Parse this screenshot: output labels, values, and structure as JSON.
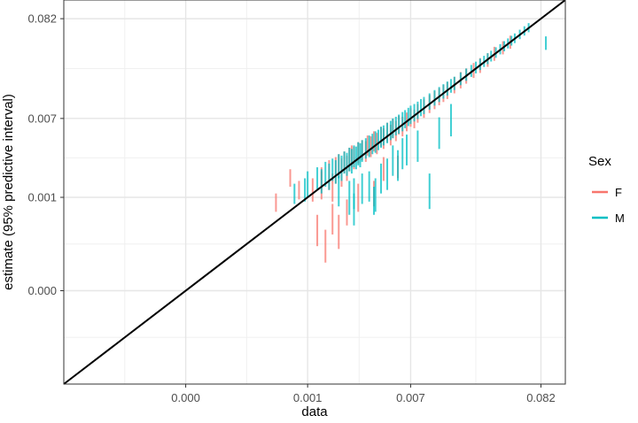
{
  "chart_data": {
    "type": "scatter",
    "subtype": "interval-scatter",
    "title": "",
    "xlabel": "data",
    "ylabel": "estimate (95% predictive interval)",
    "scale": "log10",
    "xlim": [
      1e-05,
      0.13
    ],
    "ylim": [
      1e-05,
      0.13
    ],
    "x_ticks": [
      {
        "value": 0.0001,
        "label": "0.000"
      },
      {
        "value": 0.001,
        "label": "0.001"
      },
      {
        "value": 0.007,
        "label": "0.007"
      },
      {
        "value": 0.082,
        "label": "0.082"
      }
    ],
    "y_ticks": [
      {
        "value": 0.0001,
        "label": "0.000"
      },
      {
        "value": 0.001,
        "label": "0.001"
      },
      {
        "value": 0.007,
        "label": "0.007"
      },
      {
        "value": 0.082,
        "label": "0.082"
      }
    ],
    "reference_line": "y = x",
    "grid": true,
    "legend": {
      "title": "Sex",
      "position": "right"
    },
    "series": [
      {
        "name": "F",
        "color": "#F8766D",
        "x": [
          0.00055,
          0.00072,
          0.00085,
          0.0011,
          0.0012,
          0.0013,
          0.0013,
          0.0015,
          0.0016,
          0.0017,
          0.0018,
          0.0019,
          0.002,
          0.0021,
          0.0022,
          0.0023,
          0.0024,
          0.0026,
          0.0028,
          0.003,
          0.0031,
          0.0033,
          0.0035,
          0.0037,
          0.004,
          0.0042,
          0.0045,
          0.0048,
          0.005,
          0.0053,
          0.0056,
          0.006,
          0.0065,
          0.007,
          0.0075,
          0.008,
          0.009,
          0.01,
          0.011,
          0.012,
          0.013,
          0.014,
          0.016,
          0.018,
          0.02,
          0.023,
          0.026,
          0.03,
          0.034,
          0.04,
          0.046,
          0.0016,
          0.0018,
          0.0021,
          0.0014,
          0.0026,
          0.0035,
          0.0042,
          0.0055
        ],
        "y": [
          0.0009,
          0.0016,
          0.0012,
          0.0012,
          0.00045,
          0.0014,
          0.0016,
          0.0018,
          0.0013,
          0.002,
          0.0022,
          0.0019,
          0.0024,
          0.0021,
          0.0026,
          0.0028,
          0.0027,
          0.003,
          0.0032,
          0.0031,
          0.0036,
          0.0035,
          0.004,
          0.0038,
          0.0045,
          0.0043,
          0.005,
          0.0047,
          0.0055,
          0.0052,
          0.006,
          0.0058,
          0.0065,
          0.0072,
          0.007,
          0.008,
          0.009,
          0.01,
          0.011,
          0.012,
          0.013,
          0.014,
          0.016,
          0.018,
          0.02,
          0.023,
          0.026,
          0.03,
          0.035,
          0.04,
          0.046,
          0.0006,
          0.00045,
          0.0007,
          0.0003,
          0.001,
          0.0011,
          0.002,
          0.0021
        ],
        "lo": [
          0.0007,
          0.0013,
          0.00095,
          0.0009,
          0.0003,
          0.00095,
          0.0012,
          0.0012,
          0.0009,
          0.0014,
          0.0016,
          0.0013,
          0.0018,
          0.0015,
          0.0019,
          0.0021,
          0.002,
          0.0023,
          0.0025,
          0.0024,
          0.0028,
          0.0027,
          0.0031,
          0.0029,
          0.0035,
          0.0033,
          0.0039,
          0.0036,
          0.0043,
          0.004,
          0.0047,
          0.0045,
          0.0051,
          0.0057,
          0.0055,
          0.0063,
          0.0071,
          0.008,
          0.0088,
          0.0097,
          0.0105,
          0.0113,
          0.013,
          0.0147,
          0.0165,
          0.019,
          0.0215,
          0.025,
          0.029,
          0.034,
          0.039,
          0.0004,
          0.00028,
          0.0005,
          0.0002,
          0.0007,
          0.0008,
          0.0015,
          0.0016
        ],
        "hi": [
          0.0011,
          0.002,
          0.0015,
          0.0016,
          0.00065,
          0.0019,
          0.0021,
          0.0025,
          0.0018,
          0.0027,
          0.0029,
          0.0026,
          0.0031,
          0.0028,
          0.0034,
          0.0036,
          0.0035,
          0.0039,
          0.0041,
          0.004,
          0.0046,
          0.0045,
          0.0051,
          0.0049,
          0.0057,
          0.0055,
          0.0063,
          0.006,
          0.0069,
          0.0066,
          0.0075,
          0.0073,
          0.0081,
          0.009,
          0.0087,
          0.01,
          0.0112,
          0.0125,
          0.0137,
          0.0148,
          0.016,
          0.0172,
          0.0195,
          0.022,
          0.024,
          0.0275,
          0.031,
          0.035,
          0.041,
          0.047,
          0.054,
          0.00085,
          0.00065,
          0.00095,
          0.00045,
          0.0014,
          0.0015,
          0.0027,
          0.0028
        ]
      },
      {
        "name": "M",
        "color": "#00BFC4",
        "x": [
          0.00078,
          0.00095,
          0.001,
          0.0012,
          0.0013,
          0.0014,
          0.0015,
          0.0016,
          0.0017,
          0.0018,
          0.0019,
          0.002,
          0.0021,
          0.0022,
          0.0023,
          0.0024,
          0.0025,
          0.0026,
          0.0027,
          0.0028,
          0.003,
          0.0032,
          0.0034,
          0.0036,
          0.0038,
          0.004,
          0.0042,
          0.0045,
          0.0048,
          0.005,
          0.0053,
          0.0056,
          0.006,
          0.0063,
          0.0067,
          0.007,
          0.0075,
          0.008,
          0.0085,
          0.009,
          0.01,
          0.011,
          0.012,
          0.013,
          0.014,
          0.015,
          0.016,
          0.018,
          0.02,
          0.022,
          0.024,
          0.026,
          0.028,
          0.03,
          0.032,
          0.035,
          0.038,
          0.041,
          0.044,
          0.047,
          0.05,
          0.055,
          0.06,
          0.065,
          0.09,
          0.0018,
          0.0022,
          0.0024,
          0.0028,
          0.0032,
          0.0036,
          0.004,
          0.0045,
          0.005,
          0.0055,
          0.006,
          0.0065,
          0.008,
          0.01,
          0.012,
          0.015,
          0.0024,
          0.0035
        ],
        "y": [
          0.0011,
          0.0012,
          0.0014,
          0.0016,
          0.0015,
          0.0018,
          0.0017,
          0.002,
          0.0019,
          0.0022,
          0.0021,
          0.0024,
          0.0023,
          0.0026,
          0.0025,
          0.0028,
          0.0027,
          0.003,
          0.0029,
          0.0032,
          0.0034,
          0.0036,
          0.0038,
          0.004,
          0.0042,
          0.0045,
          0.0047,
          0.005,
          0.0053,
          0.0056,
          0.0059,
          0.0062,
          0.0066,
          0.007,
          0.0074,
          0.0078,
          0.0082,
          0.0087,
          0.0093,
          0.0098,
          0.0108,
          0.0118,
          0.0128,
          0.0138,
          0.0148,
          0.0158,
          0.0168,
          0.0188,
          0.0208,
          0.0228,
          0.0248,
          0.0268,
          0.0288,
          0.0308,
          0.0328,
          0.0358,
          0.0388,
          0.0418,
          0.0448,
          0.0478,
          0.0508,
          0.0558,
          0.0608,
          0.0658,
          0.045,
          0.0012,
          0.001,
          0.0011,
          0.00125,
          0.0013,
          0.0011,
          0.0016,
          0.0018,
          0.0025,
          0.0022,
          0.003,
          0.0033,
          0.0036,
          0.0012,
          0.005,
          0.007,
          0.00075,
          0.00095
        ],
        "lo": [
          0.00085,
          0.0009,
          0.001,
          0.0012,
          0.0011,
          0.0013,
          0.0012,
          0.0015,
          0.0014,
          0.0016,
          0.0015,
          0.0018,
          0.0017,
          0.0019,
          0.0018,
          0.0021,
          0.002,
          0.0022,
          0.0021,
          0.0024,
          0.0026,
          0.0027,
          0.0029,
          0.003,
          0.0032,
          0.0034,
          0.0036,
          0.0038,
          0.0041,
          0.0043,
          0.0046,
          0.0048,
          0.0051,
          0.0055,
          0.0058,
          0.0061,
          0.0065,
          0.0069,
          0.0074,
          0.0078,
          0.0087,
          0.0096,
          0.0105,
          0.0114,
          0.0123,
          0.0132,
          0.0141,
          0.0159,
          0.0177,
          0.0195,
          0.0213,
          0.0231,
          0.0249,
          0.0267,
          0.0285,
          0.0312,
          0.034,
          0.0367,
          0.0394,
          0.0422,
          0.0449,
          0.0495,
          0.0541,
          0.0587,
          0.038,
          0.0008,
          0.00065,
          0.00075,
          0.00085,
          0.0009,
          0.0007,
          0.0011,
          0.0012,
          0.0017,
          0.0015,
          0.002,
          0.0022,
          0.0024,
          0.00075,
          0.0033,
          0.0045,
          0.0005,
          0.00065
        ],
        "hi": [
          0.0014,
          0.0016,
          0.0019,
          0.0021,
          0.002,
          0.0024,
          0.0023,
          0.0026,
          0.0025,
          0.0029,
          0.0028,
          0.0031,
          0.003,
          0.0034,
          0.0033,
          0.0036,
          0.0035,
          0.0039,
          0.0038,
          0.0041,
          0.0043,
          0.0046,
          0.0048,
          0.0051,
          0.0053,
          0.0057,
          0.0059,
          0.0063,
          0.0066,
          0.007,
          0.0073,
          0.0077,
          0.0082,
          0.0086,
          0.0091,
          0.0096,
          0.01,
          0.0106,
          0.0113,
          0.0119,
          0.013,
          0.0141,
          0.0152,
          0.0163,
          0.0174,
          0.0185,
          0.0196,
          0.0218,
          0.024,
          0.0262,
          0.0284,
          0.0306,
          0.0328,
          0.035,
          0.0372,
          0.0405,
          0.0438,
          0.0471,
          0.0504,
          0.0537,
          0.057,
          0.0625,
          0.068,
          0.0735,
          0.053,
          0.0017,
          0.0015,
          0.0016,
          0.0018,
          0.0019,
          0.0016,
          0.0023,
          0.0026,
          0.0036,
          0.0032,
          0.0043,
          0.0047,
          0.0052,
          0.0018,
          0.0072,
          0.01,
          0.0011,
          0.0013
        ]
      }
    ]
  }
}
